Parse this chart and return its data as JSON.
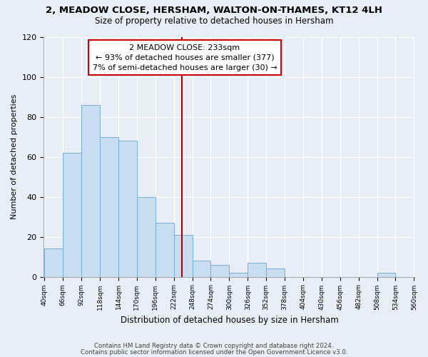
{
  "title": "2, MEADOW CLOSE, HERSHAM, WALTON-ON-THAMES, KT12 4LH",
  "subtitle": "Size of property relative to detached houses in Hersham",
  "xlabel": "Distribution of detached houses by size in Hersham",
  "ylabel": "Number of detached properties",
  "bar_color": "#c8ddf0",
  "bar_edge_color": "#7aafd4",
  "background_color": "#e8eef8",
  "grid_color": "#ffffff",
  "bin_starts": [
    40,
    66,
    92,
    118,
    144,
    170,
    196,
    222,
    248,
    274,
    300,
    326,
    352,
    378,
    404,
    430,
    456,
    482,
    508,
    534
  ],
  "bin_width": 26,
  "values": [
    14,
    62,
    86,
    70,
    68,
    40,
    27,
    21,
    8,
    6,
    2,
    7,
    4,
    0,
    0,
    0,
    0,
    0,
    2,
    0
  ],
  "property_size": 233,
  "annotation_title": "2 MEADOW CLOSE: 233sqm",
  "annotation_line1": "← 93% of detached houses are smaller (377)",
  "annotation_line2": "7% of semi-detached houses are larger (30) →",
  "annotation_box_color": "#ffffff",
  "annotation_box_edge_color": "#cc0000",
  "vline_color": "#aa0000",
  "ylim": [
    0,
    120
  ],
  "yticks": [
    0,
    20,
    40,
    60,
    80,
    100,
    120
  ],
  "tick_labels": [
    "40sqm",
    "66sqm",
    "92sqm",
    "118sqm",
    "144sqm",
    "170sqm",
    "196sqm",
    "222sqm",
    "248sqm",
    "274sqm",
    "300sqm",
    "326sqm",
    "352sqm",
    "378sqm",
    "404sqm",
    "430sqm",
    "456sqm",
    "482sqm",
    "508sqm",
    "534sqm",
    "560sqm"
  ],
  "footer1": "Contains HM Land Registry data © Crown copyright and database right 2024.",
  "footer2": "Contains public sector information licensed under the Open Government Licence v3.0."
}
